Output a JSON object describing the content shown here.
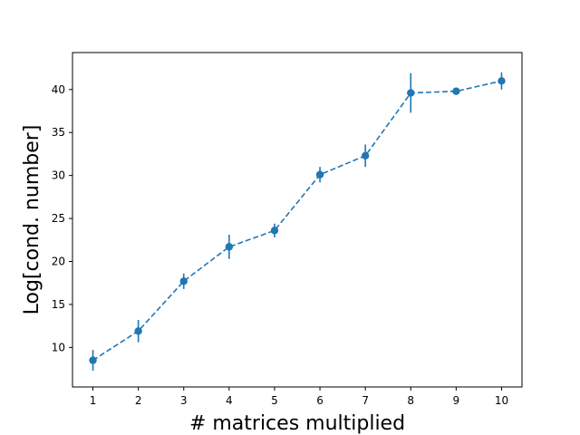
{
  "chart_data": {
    "type": "line",
    "title": "",
    "xlabel": "# matrices multiplied",
    "ylabel": "Log[cond. number]",
    "x": [
      1,
      2,
      3,
      4,
      5,
      6,
      7,
      8,
      9,
      10
    ],
    "series": [
      {
        "values": [
          8.5,
          11.9,
          17.7,
          21.7,
          23.6,
          30.1,
          32.3,
          39.6,
          39.8,
          41.0
        ],
        "errors": [
          1.2,
          1.3,
          0.9,
          1.4,
          0.8,
          0.9,
          1.3,
          2.3,
          0.4,
          1.0
        ],
        "color": "#1f77b4",
        "line_style": "dashed",
        "marker": "circle"
      }
    ],
    "xlim": [
      0.55,
      10.45
    ],
    "ylim": [
      5.4,
      44.3
    ],
    "xticks": [
      "1",
      "2",
      "3",
      "4",
      "5",
      "6",
      "7",
      "8",
      "9",
      "10"
    ],
    "yticks": [
      "10",
      "15",
      "20",
      "25",
      "30",
      "35",
      "40"
    ],
    "grid": false,
    "legend": "none"
  }
}
